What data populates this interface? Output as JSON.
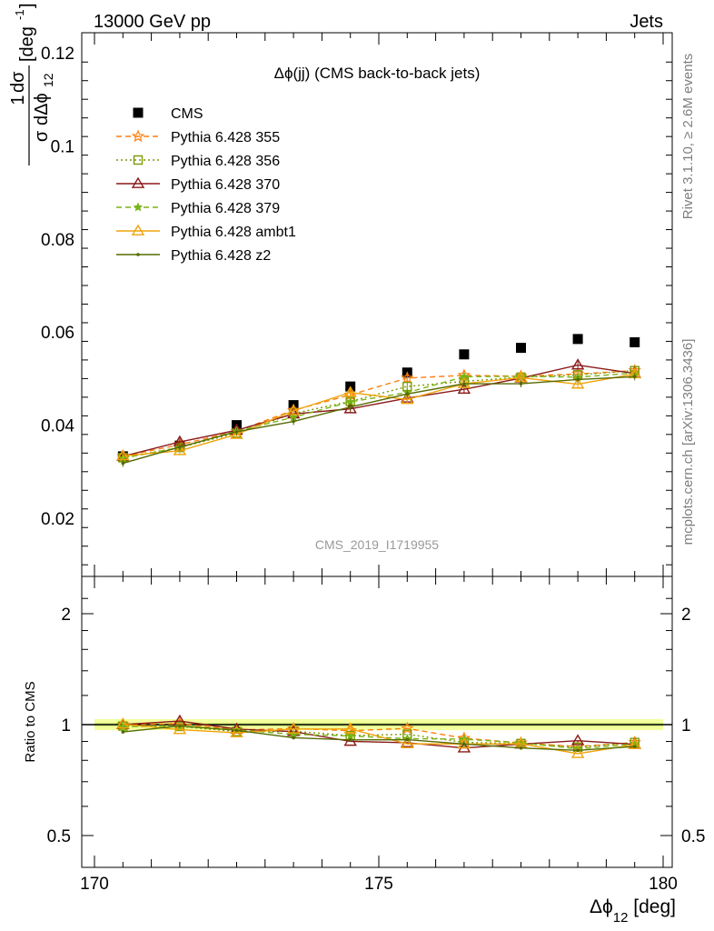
{
  "header": {
    "energy_label": "13000 GeV pp",
    "process_label": "Jets"
  },
  "side_text": {
    "rivet": "Rivet 3.1.10, ≥ 2.6M events",
    "mcplots": "mcplots.cern.ch [arXiv:1306.3436]"
  },
  "chart_data": {
    "type": "line",
    "title": "Δϕ(jj) (CMS back-to-back jets)",
    "analysis_label": "CMS_2019_I1719955",
    "xlabel": "Δϕ",
    "xlabel_sub": "12",
    "xlabel_unit": " [deg]",
    "ylabel": "1 dσ / σ dΔϕ_12 [deg^-1]",
    "ratio_ylabel": "Ratio to CMS",
    "xlim": [
      170,
      180
    ],
    "ylim": [
      0.008,
      0.124
    ],
    "ratio_ylim": [
      0.35,
      2.3
    ],
    "xticks": [
      "170",
      "175",
      "180"
    ],
    "yticks": [
      "0.02",
      "0.04",
      "0.06",
      "0.08",
      "0.1",
      "0.12"
    ],
    "ratio_yticks": [
      "0.5",
      "1",
      "2"
    ],
    "legend_position": "top-left",
    "x": [
      170.5,
      171.5,
      172.5,
      173.5,
      174.5,
      175.5,
      176.5,
      177.5,
      178.5,
      179.5
    ],
    "series": [
      {
        "name": "CMS",
        "color": "#000000",
        "marker": "square",
        "line": "none",
        "values": [
          0.0333,
          0.0356,
          0.04,
          0.0443,
          0.0483,
          0.0513,
          0.0552,
          0.0566,
          0.0585,
          0.0578
        ]
      },
      {
        "name": "Pythia 6.428 355",
        "color": "#ff7f0e",
        "marker": "star",
        "line": "dashed",
        "values": [
          0.0333,
          0.0358,
          0.0387,
          0.0432,
          0.0465,
          0.0501,
          0.0507,
          0.0505,
          0.051,
          0.0517
        ]
      },
      {
        "name": "Pythia 6.428 356",
        "color": "#7a9a01",
        "marker": "open-square",
        "line": "dotted",
        "values": [
          0.033,
          0.0352,
          0.0383,
          0.0425,
          0.0451,
          0.0483,
          0.0494,
          0.0503,
          0.0508,
          0.0517
        ]
      },
      {
        "name": "Pythia 6.428 370",
        "color": "#8b1a1a",
        "marker": "open-triangle",
        "line": "solid",
        "values": [
          0.0333,
          0.0364,
          0.0389,
          0.0424,
          0.0435,
          0.0458,
          0.0477,
          0.0501,
          0.0529,
          0.0511
        ]
      },
      {
        "name": "Pythia 6.428 379",
        "color": "#7ab317",
        "marker": "star-small",
        "line": "dashed",
        "values": [
          0.0329,
          0.0352,
          0.0387,
          0.0417,
          0.045,
          0.047,
          0.0504,
          0.0505,
          0.0503,
          0.0512
        ]
      },
      {
        "name": "Pythia 6.428 ambt1",
        "color": "#f0a30a",
        "marker": "open-triangle",
        "line": "solid",
        "values": [
          0.0334,
          0.0345,
          0.038,
          0.0431,
          0.047,
          0.0455,
          0.0489,
          0.0502,
          0.0488,
          0.051
        ]
      },
      {
        "name": "Pythia 6.428 z2",
        "color": "#556b00",
        "marker": "dot",
        "line": "solid",
        "values": [
          0.0318,
          0.0353,
          0.0386,
          0.0408,
          0.0439,
          0.0467,
          0.0489,
          0.0489,
          0.0498,
          0.0504
        ]
      }
    ]
  },
  "colors": {
    "band_outer": "#f4ff9e",
    "band_inner": "#d7f37f",
    "ratio_line": "#00aa66",
    "muted_text": "#7f7f7f"
  }
}
